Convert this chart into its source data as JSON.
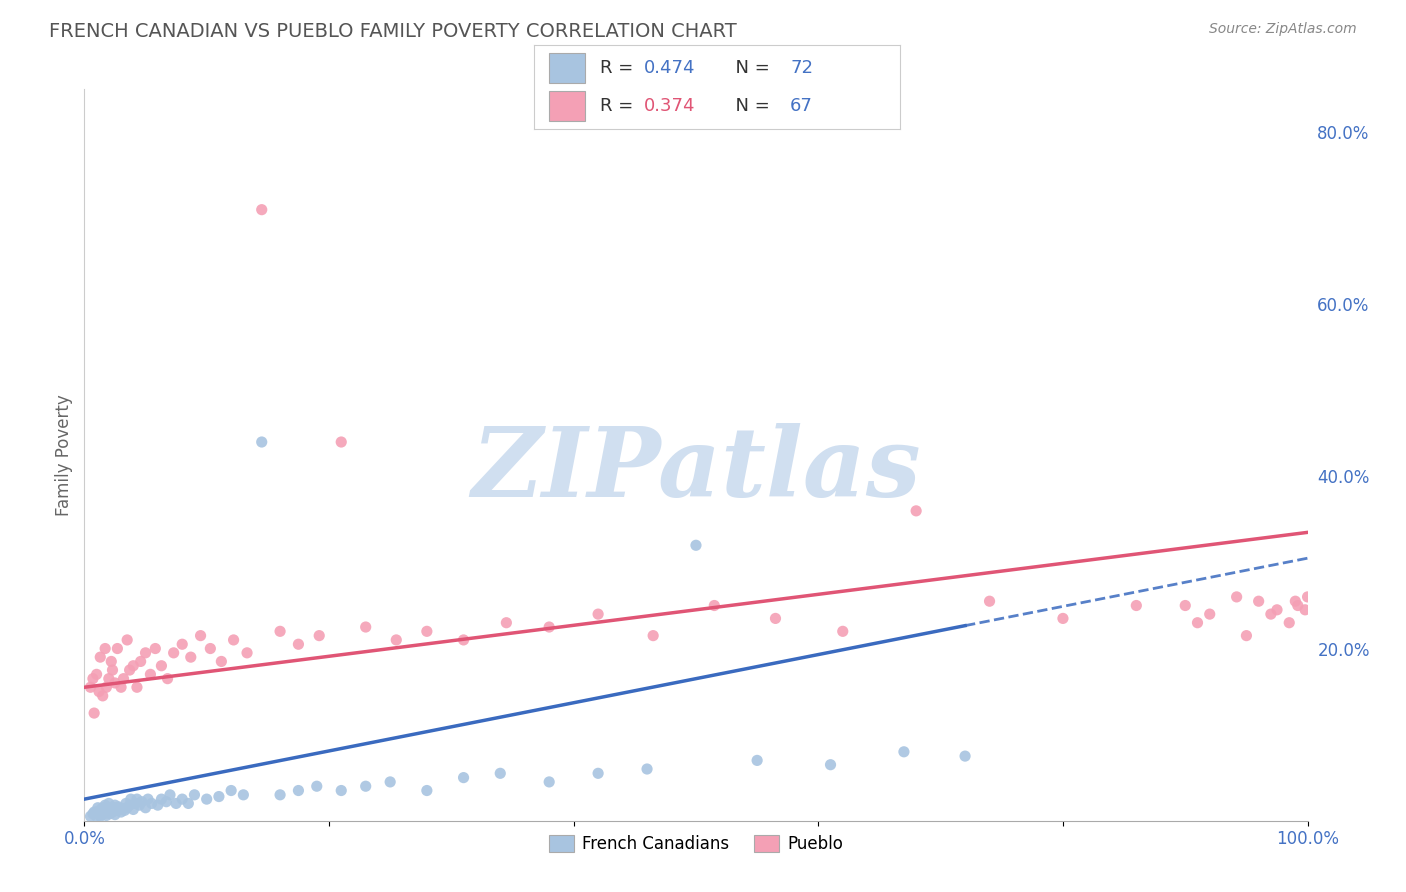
{
  "title": "FRENCH CANADIAN VS PUEBLO FAMILY POVERTY CORRELATION CHART",
  "source_text": "Source: ZipAtlas.com",
  "ylabel": "Family Poverty",
  "legend_label1": "French Canadians",
  "legend_label2": "Pueblo",
  "r1": 0.474,
  "n1": 72,
  "r2": 0.374,
  "n2": 67,
  "color1": "#a8c4e0",
  "color2": "#f4a0b5",
  "line_color1": "#3a6abf",
  "line_color2": "#e05575",
  "title_color": "#3a6abf",
  "title_fontsize": 14,
  "watermark_text": "ZIPatlas",
  "watermark_color": "#d0dff0",
  "xlim": [
    0.0,
    1.0
  ],
  "ylim": [
    0.0,
    0.85
  ],
  "bg_color": "#ffffff",
  "grid_color": "#cccccc",
  "line1_x0": 0.0,
  "line1_y0": 0.025,
  "line1_x1": 1.0,
  "line1_y1": 0.305,
  "line2_x0": 0.0,
  "line2_y0": 0.155,
  "line2_x1": 1.0,
  "line2_y1": 0.335,
  "line1_solid_end": 0.72,
  "scatter1_x": [
    0.005,
    0.007,
    0.008,
    0.01,
    0.01,
    0.011,
    0.012,
    0.013,
    0.013,
    0.014,
    0.015,
    0.015,
    0.016,
    0.017,
    0.017,
    0.018,
    0.019,
    0.02,
    0.02,
    0.021,
    0.022,
    0.023,
    0.024,
    0.025,
    0.025,
    0.027,
    0.028,
    0.03,
    0.031,
    0.033,
    0.034,
    0.035,
    0.037,
    0.038,
    0.04,
    0.042,
    0.043,
    0.045,
    0.047,
    0.05,
    0.052,
    0.055,
    0.06,
    0.063,
    0.067,
    0.07,
    0.075,
    0.08,
    0.085,
    0.09,
    0.1,
    0.11,
    0.12,
    0.13,
    0.145,
    0.16,
    0.175,
    0.19,
    0.21,
    0.23,
    0.25,
    0.28,
    0.31,
    0.34,
    0.38,
    0.42,
    0.46,
    0.5,
    0.55,
    0.61,
    0.67,
    0.72
  ],
  "scatter1_y": [
    0.005,
    0.008,
    0.01,
    0.005,
    0.01,
    0.015,
    0.008,
    0.005,
    0.012,
    0.007,
    0.01,
    0.015,
    0.008,
    0.012,
    0.018,
    0.006,
    0.01,
    0.015,
    0.02,
    0.008,
    0.013,
    0.01,
    0.015,
    0.007,
    0.018,
    0.012,
    0.016,
    0.01,
    0.014,
    0.012,
    0.02,
    0.015,
    0.018,
    0.025,
    0.013,
    0.02,
    0.025,
    0.018,
    0.022,
    0.015,
    0.025,
    0.02,
    0.018,
    0.025,
    0.022,
    0.03,
    0.02,
    0.025,
    0.02,
    0.03,
    0.025,
    0.028,
    0.035,
    0.03,
    0.44,
    0.03,
    0.035,
    0.04,
    0.035,
    0.04,
    0.045,
    0.035,
    0.05,
    0.055,
    0.045,
    0.055,
    0.06,
    0.32,
    0.07,
    0.065,
    0.08,
    0.075
  ],
  "scatter2_x": [
    0.005,
    0.007,
    0.008,
    0.01,
    0.012,
    0.013,
    0.015,
    0.017,
    0.018,
    0.02,
    0.022,
    0.023,
    0.025,
    0.027,
    0.03,
    0.032,
    0.035,
    0.037,
    0.04,
    0.043,
    0.046,
    0.05,
    0.054,
    0.058,
    0.063,
    0.068,
    0.073,
    0.08,
    0.087,
    0.095,
    0.103,
    0.112,
    0.122,
    0.133,
    0.145,
    0.16,
    0.175,
    0.192,
    0.21,
    0.23,
    0.255,
    0.28,
    0.31,
    0.345,
    0.38,
    0.42,
    0.465,
    0.515,
    0.565,
    0.62,
    0.68,
    0.74,
    0.8,
    0.86,
    0.91,
    0.95,
    0.97,
    0.985,
    0.992,
    0.998,
    1.0,
    0.99,
    0.975,
    0.96,
    0.942,
    0.92,
    0.9
  ],
  "scatter2_y": [
    0.155,
    0.165,
    0.125,
    0.17,
    0.15,
    0.19,
    0.145,
    0.2,
    0.155,
    0.165,
    0.185,
    0.175,
    0.16,
    0.2,
    0.155,
    0.165,
    0.21,
    0.175,
    0.18,
    0.155,
    0.185,
    0.195,
    0.17,
    0.2,
    0.18,
    0.165,
    0.195,
    0.205,
    0.19,
    0.215,
    0.2,
    0.185,
    0.21,
    0.195,
    0.71,
    0.22,
    0.205,
    0.215,
    0.44,
    0.225,
    0.21,
    0.22,
    0.21,
    0.23,
    0.225,
    0.24,
    0.215,
    0.25,
    0.235,
    0.22,
    0.36,
    0.255,
    0.235,
    0.25,
    0.23,
    0.215,
    0.24,
    0.23,
    0.25,
    0.245,
    0.26,
    0.255,
    0.245,
    0.255,
    0.26,
    0.24,
    0.25
  ]
}
